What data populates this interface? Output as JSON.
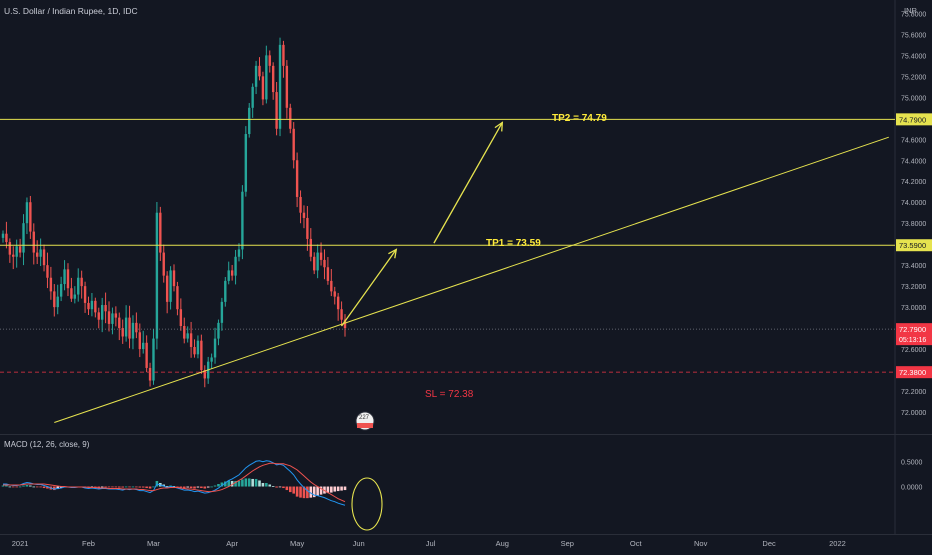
{
  "header": {
    "symbol_title": "U.S. Dollar / Indian Rupee, 1D, IDC",
    "currency": "INR"
  },
  "colors": {
    "background": "#131722",
    "up": "#26a69a",
    "down": "#ef5350",
    "annotation_line": "#e6e34f",
    "tp_text": "#ffeb3b",
    "sl_text": "#f23645",
    "sl_line": "#f23645",
    "macd_line": "#2196f3",
    "signal_line": "#ef5350",
    "hist_up_strong": "#26a69a",
    "hist_up_weak": "#b2dfdb",
    "hist_down_strong": "#ef5350",
    "hist_down_weak": "#ffcdd2",
    "price_label_current": "#f23645",
    "price_label_level": "#e6e34f"
  },
  "chart_data": {
    "type": "candlestick",
    "y_range": [
      71.8,
      75.88
    ],
    "y_ticks": [
      "75.8000",
      "75.6000",
      "75.4000",
      "75.2000",
      "75.0000",
      "74.8000",
      "74.6000",
      "74.4000",
      "74.2000",
      "74.0000",
      "73.8000",
      "73.6000",
      "73.4000",
      "73.2000",
      "73.0000",
      "72.8000",
      "72.6000",
      "72.4000",
      "72.2000",
      "72.0000"
    ],
    "x_labels": [
      {
        "label": "2021",
        "index": 5
      },
      {
        "label": "Feb",
        "index": 25
      },
      {
        "label": "Mar",
        "index": 44
      },
      {
        "label": "Apr",
        "index": 67
      },
      {
        "label": "May",
        "index": 86
      },
      {
        "label": "Jun",
        "index": 104
      },
      {
        "label": "Jul",
        "index": 125
      },
      {
        "label": "Aug",
        "index": 146
      },
      {
        "label": "Sep",
        "index": 165
      },
      {
        "label": "Oct",
        "index": 185
      },
      {
        "label": "Nov",
        "index": 204
      },
      {
        "label": "Dec",
        "index": 224
      },
      {
        "label": "2022",
        "index": 244
      }
    ],
    "candles_close": [
      73.7,
      73.62,
      73.5,
      73.48,
      73.58,
      73.52,
      73.8,
      74.0,
      73.72,
      73.52,
      73.48,
      73.55,
      73.4,
      73.28,
      73.15,
      73.0,
      73.1,
      73.22,
      73.36,
      73.18,
      73.08,
      73.12,
      73.28,
      73.2,
      73.04,
      72.98,
      73.06,
      72.95,
      72.88,
      73.02,
      72.96,
      72.84,
      72.94,
      72.9,
      72.8,
      72.72,
      72.9,
      72.7,
      72.85,
      72.76,
      72.6,
      72.66,
      72.42,
      72.3,
      72.7,
      73.9,
      73.52,
      73.3,
      73.05,
      73.35,
      73.2,
      72.98,
      72.82,
      72.7,
      72.75,
      72.62,
      72.55,
      72.68,
      72.4,
      72.32,
      72.48,
      72.52,
      72.7,
      72.85,
      73.05,
      73.25,
      73.35,
      73.3,
      73.48,
      73.55,
      74.1,
      74.65,
      74.9,
      75.1,
      75.3,
      75.2,
      74.98,
      75.4,
      75.3,
      75.05,
      74.7,
      75.5,
      75.3,
      74.9,
      74.7,
      74.4,
      74.05,
      73.9,
      73.85,
      73.65,
      73.48,
      73.35,
      73.52,
      73.45,
      73.38,
      73.25,
      73.15,
      73.1,
      72.98,
      72.88,
      72.8
    ],
    "series": [
      {
        "name": "MACD",
        "values": [
          0.05,
          0.05,
          0.03,
          0.02,
          0.02,
          0.03,
          0.06,
          0.08,
          0.07,
          0.05,
          0.04,
          0.04,
          0.02,
          0.0,
          -0.03,
          -0.05,
          -0.04,
          -0.03,
          -0.01,
          -0.01,
          -0.02,
          -0.02,
          -0.01,
          -0.01,
          -0.03,
          -0.04,
          -0.03,
          -0.04,
          -0.05,
          -0.04,
          -0.04,
          -0.05,
          -0.05,
          -0.05,
          -0.06,
          -0.07,
          -0.05,
          -0.06,
          -0.05,
          -0.06,
          -0.08,
          -0.08,
          -0.1,
          -0.12,
          -0.08,
          0.05,
          0.03,
          0.01,
          -0.02,
          0.0,
          -0.01,
          -0.03,
          -0.05,
          -0.07,
          -0.07,
          -0.08,
          -0.1,
          -0.09,
          -0.11,
          -0.13,
          -0.12,
          -0.1,
          -0.07,
          -0.03,
          0.02,
          0.07,
          0.12,
          0.15,
          0.19,
          0.23,
          0.3,
          0.37,
          0.42,
          0.46,
          0.5,
          0.51,
          0.49,
          0.51,
          0.5,
          0.47,
          0.43,
          0.44,
          0.42,
          0.36,
          0.3,
          0.23,
          0.13,
          0.05,
          -0.02,
          -0.08,
          -0.13,
          -0.17,
          -0.18,
          -0.2,
          -0.22,
          -0.25,
          -0.28,
          -0.3,
          -0.33,
          -0.35,
          -0.37
        ]
      },
      {
        "name": "Signal",
        "values": [
          0.03,
          0.03,
          0.03,
          0.03,
          0.03,
          0.03,
          0.04,
          0.05,
          0.05,
          0.05,
          0.05,
          0.05,
          0.05,
          0.04,
          0.03,
          0.02,
          0.01,
          0.0,
          0.0,
          -0.01,
          -0.01,
          -0.01,
          -0.01,
          -0.01,
          -0.01,
          -0.02,
          -0.02,
          -0.02,
          -0.03,
          -0.03,
          -0.03,
          -0.04,
          -0.04,
          -0.04,
          -0.04,
          -0.05,
          -0.05,
          -0.05,
          -0.05,
          -0.05,
          -0.06,
          -0.06,
          -0.07,
          -0.08,
          -0.08,
          -0.06,
          -0.04,
          -0.03,
          -0.03,
          -0.02,
          -0.02,
          -0.02,
          -0.03,
          -0.04,
          -0.05,
          -0.05,
          -0.06,
          -0.07,
          -0.08,
          -0.09,
          -0.1,
          -0.1,
          -0.09,
          -0.08,
          -0.06,
          -0.03,
          0.0,
          0.04,
          0.08,
          0.12,
          0.16,
          0.21,
          0.26,
          0.31,
          0.35,
          0.39,
          0.42,
          0.44,
          0.46,
          0.46,
          0.45,
          0.45,
          0.45,
          0.43,
          0.41,
          0.37,
          0.33,
          0.27,
          0.21,
          0.15,
          0.09,
          0.04,
          0.0,
          -0.04,
          -0.08,
          -0.12,
          -0.16,
          -0.2,
          -0.24,
          -0.27,
          -0.3
        ]
      },
      {
        "name": "Histogram",
        "values": [
          0.02,
          0.02,
          0.0,
          -0.01,
          -0.01,
          0.0,
          0.02,
          0.03,
          0.02,
          0.0,
          -0.01,
          -0.01,
          -0.03,
          -0.04,
          -0.06,
          -0.07,
          -0.05,
          -0.03,
          -0.01,
          0.0,
          -0.01,
          -0.01,
          0.0,
          0.0,
          -0.02,
          -0.02,
          -0.01,
          -0.02,
          -0.02,
          -0.01,
          -0.01,
          -0.01,
          -0.01,
          -0.01,
          -0.02,
          -0.02,
          0.0,
          -0.01,
          0.0,
          -0.01,
          -0.02,
          -0.02,
          -0.03,
          -0.04,
          0.0,
          0.11,
          0.07,
          0.04,
          0.01,
          0.02,
          0.01,
          -0.01,
          -0.02,
          -0.03,
          -0.02,
          -0.03,
          -0.04,
          -0.02,
          -0.03,
          -0.04,
          -0.02,
          0.0,
          0.02,
          0.05,
          0.08,
          0.1,
          0.12,
          0.11,
          0.11,
          0.11,
          0.14,
          0.16,
          0.16,
          0.15,
          0.15,
          0.12,
          0.07,
          0.07,
          0.04,
          0.01,
          -0.02,
          -0.01,
          -0.03,
          -0.07,
          -0.11,
          -0.14,
          -0.2,
          -0.22,
          -0.23,
          -0.23,
          -0.22,
          -0.21,
          -0.18,
          -0.16,
          -0.14,
          -0.13,
          -0.12,
          -0.1,
          -0.09,
          -0.08,
          -0.07
        ]
      }
    ],
    "macd_y_range": [
      -0.9,
      1.0
    ],
    "macd_ticks": [
      "0.5000",
      "0.0000"
    ],
    "levels": [
      {
        "name": "tp2",
        "value": 74.79,
        "price_label": "74.7900"
      },
      {
        "name": "tp1",
        "value": 73.59,
        "price_label": "73.5900"
      },
      {
        "name": "current",
        "value": 72.79,
        "price_label": "72.7900",
        "countdown": "05:13:16"
      },
      {
        "name": "sl",
        "value": 72.38,
        "price_label": "72.3800"
      }
    ],
    "trendline": {
      "from": {
        "index": 15,
        "price": 71.9
      },
      "to": {
        "index": 259,
        "price": 74.62
      }
    },
    "arrows": [
      {
        "from": {
          "index": 99,
          "price": 72.82
        },
        "to": {
          "index": 115,
          "price": 73.55
        }
      },
      {
        "from": {
          "index": 126,
          "price": 73.61
        },
        "to": {
          "index": 146,
          "price": 74.76
        }
      }
    ],
    "annotations": {
      "tp2": "TP2 = 74.79",
      "tp1": "TP1 = 73.59",
      "sl": "SL = 72.38"
    },
    "macd_legend": "MACD (12, 26, close, 9)"
  },
  "events_badge": "227"
}
